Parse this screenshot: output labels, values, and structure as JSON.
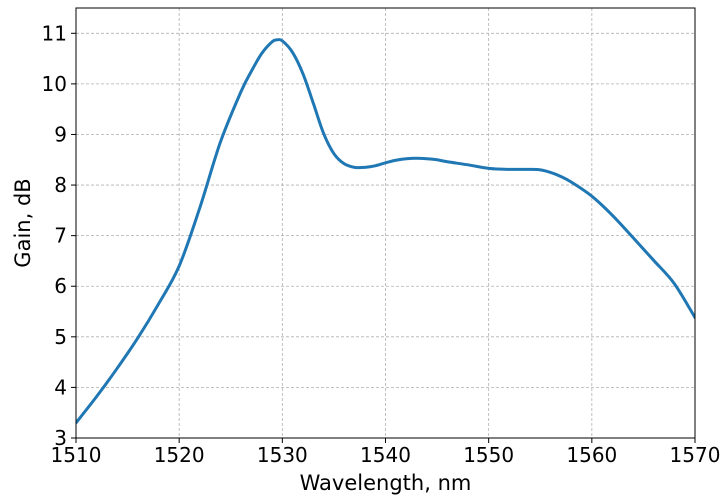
{
  "chart_data": {
    "type": "line",
    "title": "",
    "xlabel": "Wavelength, nm",
    "ylabel": "Gain, dB",
    "xlim": [
      1510,
      1570
    ],
    "ylim": [
      3,
      11.5
    ],
    "xticks": [
      1510,
      1520,
      1530,
      1540,
      1550,
      1560,
      1570
    ],
    "yticks": [
      3,
      4,
      5,
      6,
      7,
      8,
      9,
      10,
      11
    ],
    "grid": true,
    "legend": "none",
    "series_color": "#1f77b4",
    "series": [
      {
        "x": [
          1510,
          1512,
          1514,
          1516,
          1518,
          1520,
          1522,
          1524,
          1526,
          1527,
          1528,
          1529,
          1529.5,
          1530,
          1531,
          1532,
          1533,
          1534,
          1535,
          1536,
          1537,
          1538,
          1539,
          1540,
          1541,
          1542,
          1543,
          1544,
          1545,
          1546,
          1548,
          1550,
          1552,
          1554,
          1555,
          1556,
          1557,
          1558,
          1560,
          1562,
          1564,
          1566,
          1568,
          1570
        ],
        "y": [
          3.3,
          3.82,
          4.38,
          4.98,
          5.65,
          6.4,
          7.55,
          8.85,
          9.85,
          10.25,
          10.6,
          10.83,
          10.87,
          10.85,
          10.62,
          10.2,
          9.62,
          9.02,
          8.62,
          8.42,
          8.35,
          8.35,
          8.38,
          8.44,
          8.49,
          8.52,
          8.53,
          8.52,
          8.5,
          8.46,
          8.4,
          8.33,
          8.31,
          8.31,
          8.3,
          8.25,
          8.17,
          8.06,
          7.78,
          7.4,
          6.96,
          6.51,
          6.05,
          5.38
        ]
      }
    ]
  }
}
